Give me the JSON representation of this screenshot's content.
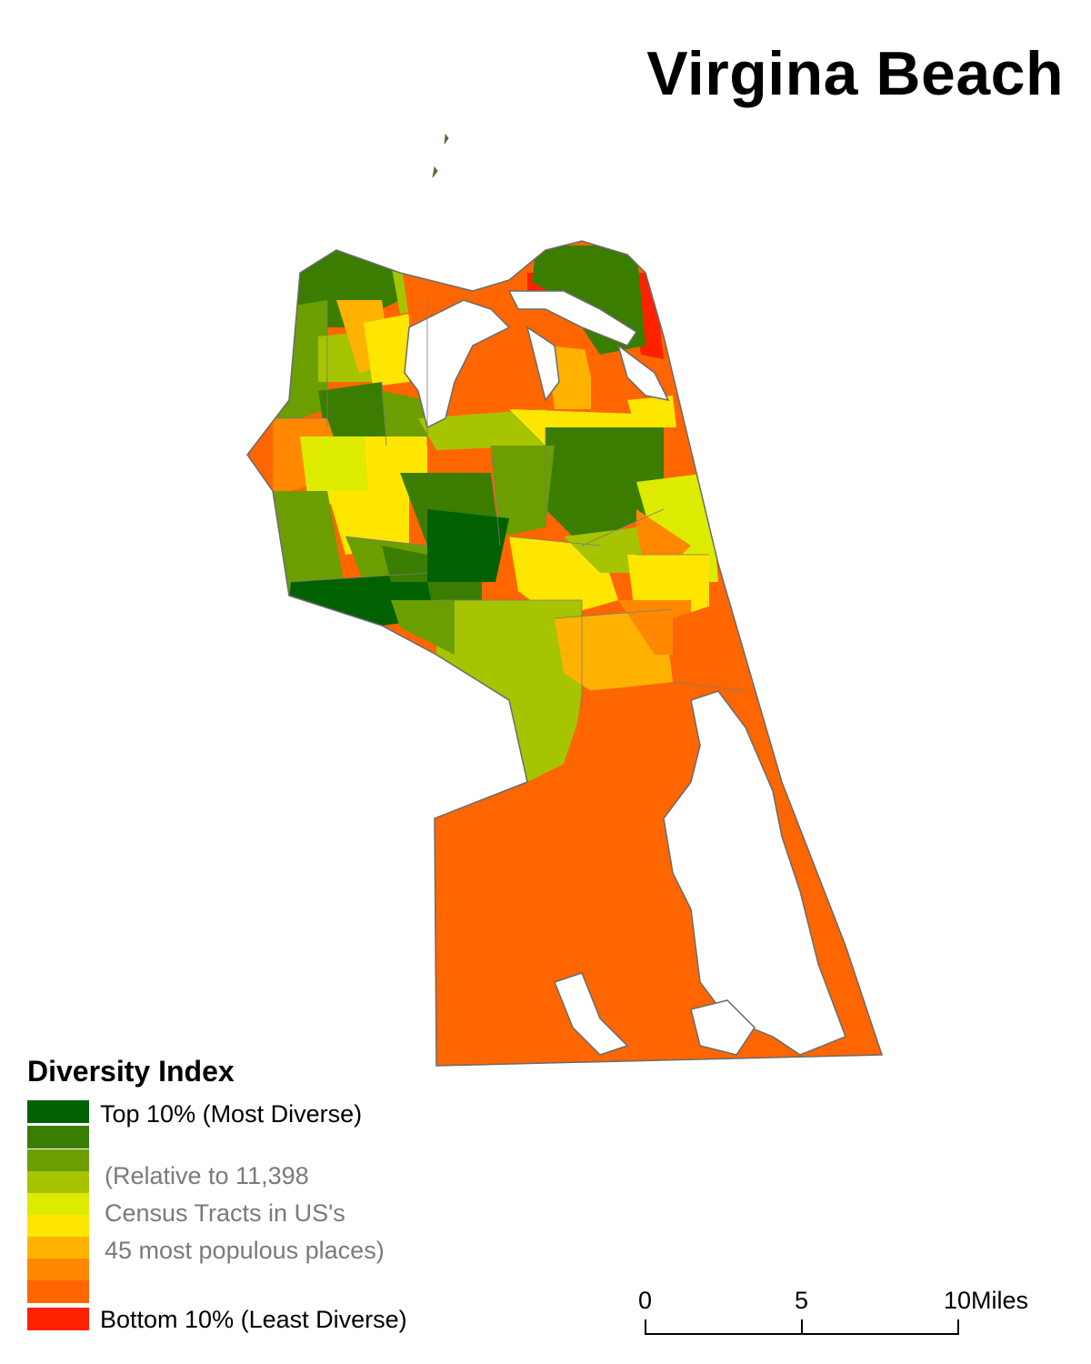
{
  "title": "Virgina Beach",
  "legend": {
    "title": "Diversity Index",
    "classes": [
      {
        "color": "#006100",
        "label": "Top 10% (Most Diverse)"
      },
      {
        "color": "#3a7d00",
        "label": ""
      },
      {
        "color": "#6b9e00",
        "label": ""
      },
      {
        "color": "#a6c400",
        "label": ""
      },
      {
        "color": "#dceb00",
        "label": ""
      },
      {
        "color": "#ffe600",
        "label": ""
      },
      {
        "color": "#ffb300",
        "label": ""
      },
      {
        "color": "#ff8800",
        "label": ""
      },
      {
        "color": "#ff6600",
        "label": ""
      },
      {
        "color": "#ff2200",
        "label": "Bottom 10% (Least Diverse)"
      }
    ],
    "note_lines": [
      "(Relative to 11,398",
      "Census Tracts in US's",
      "45 most populous places)"
    ]
  },
  "scale_bar": {
    "labels": [
      "0",
      "5",
      "10Miles"
    ]
  }
}
